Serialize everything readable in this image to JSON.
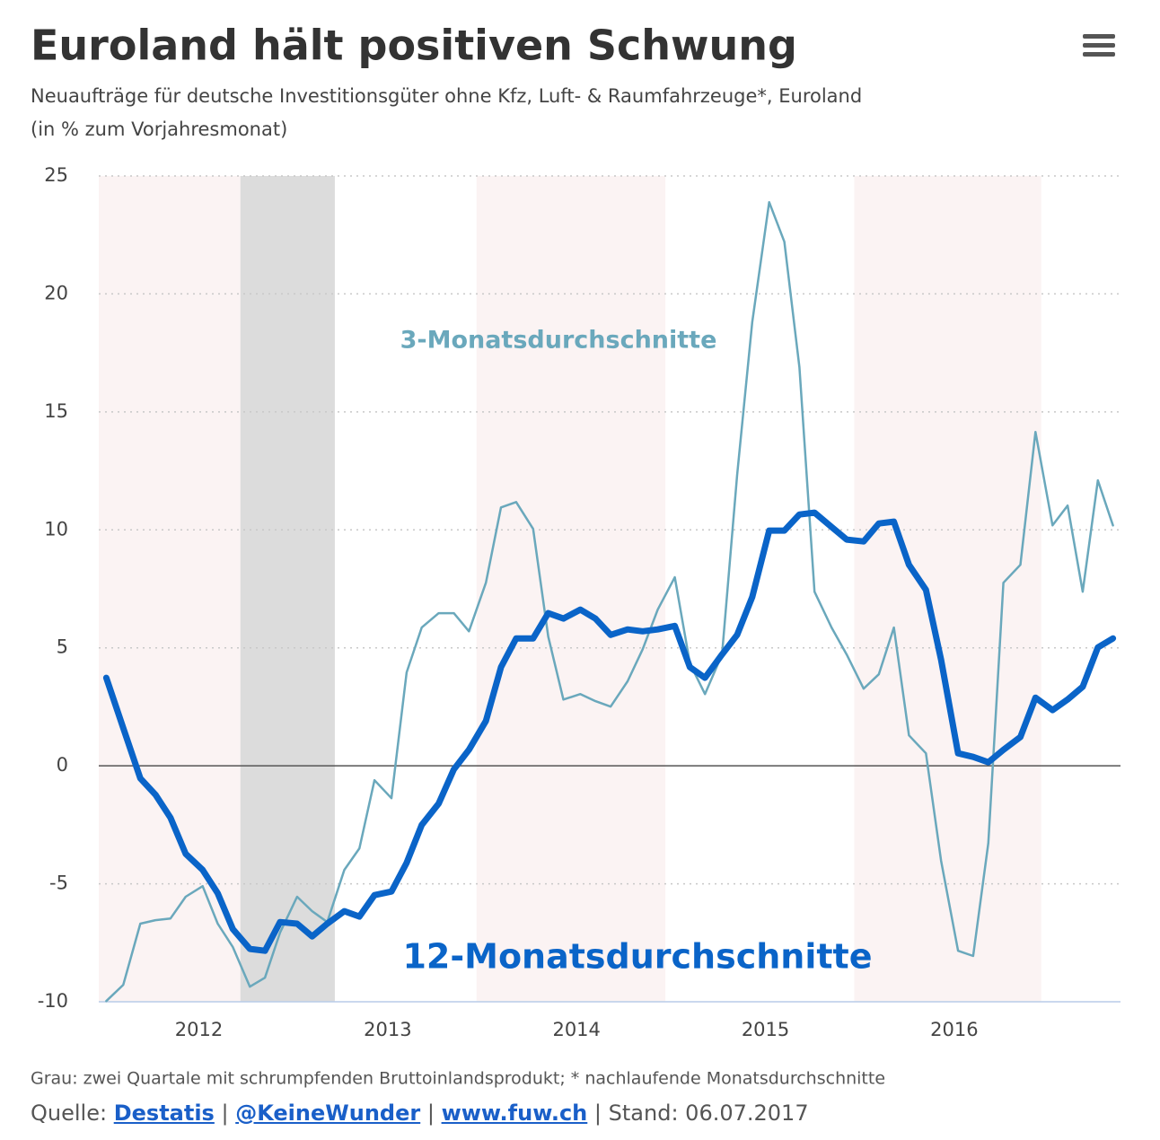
{
  "chart_data": {
    "type": "line",
    "title": "Euroland hält positiven Schwung",
    "subtitle": "Neuaufträge für deutsche Investitionsgüter ohne Kfz, Luft- & Raumfahrzeuge*, Euroland",
    "subtitle2": "(in % zum Vorjahresmonat)",
    "x": [
      2011.51,
      2011.6,
      2011.69,
      2011.77,
      2011.85,
      2011.93,
      2012.02,
      2012.1,
      2012.18,
      2012.27,
      2012.35,
      2012.43,
      2012.52,
      2012.6,
      2012.68,
      2012.77,
      2012.85,
      2012.93,
      2013.02,
      2013.1,
      2013.18,
      2013.27,
      2013.35,
      2013.43,
      2013.52,
      2013.6,
      2013.68,
      2013.77,
      2013.85,
      2013.93,
      2014.02,
      2014.1,
      2014.18,
      2014.27,
      2014.35,
      2014.43,
      2014.52,
      2014.6,
      2014.68,
      2014.77,
      2014.85,
      2014.93,
      2015.02,
      2015.1,
      2015.18,
      2015.26,
      2015.35,
      2015.43,
      2015.52,
      2015.6,
      2015.68,
      2015.76,
      2015.85,
      2015.93,
      2016.02,
      2016.1,
      2016.18,
      2016.26,
      2016.35,
      2016.43,
      2016.52,
      2016.6,
      2016.68,
      2016.76,
      2016.84
    ],
    "series": [
      {
        "name": "3-Monatsdurchschnitte",
        "color": "#6aa8bc",
        "width": 2.5,
        "values": [
          -9.97,
          -9.28,
          -6.69,
          -6.54,
          -6.47,
          -5.55,
          -5.1,
          -6.69,
          -7.68,
          -9.36,
          -8.98,
          -7.07,
          -5.55,
          -6.16,
          -6.62,
          -4.41,
          -3.5,
          -0.61,
          -1.37,
          3.96,
          5.86,
          6.47,
          6.47,
          5.7,
          7.76,
          10.95,
          11.18,
          10.04,
          5.48,
          2.81,
          3.04,
          2.74,
          2.51,
          3.58,
          4.94,
          6.62,
          7.99,
          4.34,
          3.04,
          4.72,
          12.32,
          18.79,
          23.89,
          22.21,
          16.89,
          7.38,
          5.86,
          4.72,
          3.27,
          3.88,
          5.86,
          1.29,
          0.53,
          -4.03,
          -7.84,
          -8.06,
          -3.27,
          7.76,
          8.52,
          14.15,
          10.19,
          11.03,
          7.38,
          12.1,
          10.19
        ]
      },
      {
        "name": "12-Monatsdurchschnitte",
        "color": "#0a64c8",
        "width": 7,
        "values": [
          3.73,
          1.6,
          -0.53,
          -1.22,
          -2.2,
          -3.73,
          -4.41,
          -5.4,
          -6.92,
          -7.76,
          -7.84,
          -6.62,
          -6.69,
          -7.23,
          -6.69,
          -6.16,
          -6.39,
          -5.48,
          -5.33,
          -4.11,
          -2.51,
          -1.6,
          -0.15,
          0.68,
          1.9,
          4.18,
          5.4,
          5.4,
          6.47,
          6.24,
          6.62,
          6.24,
          5.55,
          5.78,
          5.7,
          5.78,
          5.93,
          4.18,
          3.73,
          4.72,
          5.55,
          7.15,
          9.97,
          9.97,
          10.65,
          10.73,
          10.12,
          9.59,
          9.51,
          10.27,
          10.35,
          8.52,
          7.46,
          4.49,
          0.53,
          0.38,
          0.15,
          0.68,
          1.22,
          2.89,
          2.36,
          2.81,
          3.35,
          5.02,
          5.4
        ]
      }
    ],
    "xlim": [
      2011.47,
      2016.88
    ],
    "xticks": [
      2012,
      2013,
      2014,
      2015,
      2016
    ],
    "ylim": [
      -10,
      25
    ],
    "yticks": [
      -10,
      -5,
      0,
      5,
      10,
      15,
      20,
      25
    ],
    "grid": true,
    "bands": [
      {
        "from": 2011.47,
        "to": 2012.47,
        "color": "#fbf3f3"
      },
      {
        "from": 2013.47,
        "to": 2014.47,
        "color": "#fbf3f3"
      },
      {
        "from": 2015.47,
        "to": 2016.46,
        "color": "#fbf3f3"
      },
      {
        "from": 2012.22,
        "to": 2012.72,
        "color": "#dcdcdc"
      }
    ],
    "footnote": "Grau: zwei Quartale mit schrumpfenden Bruttoinlandsprodukt; * nachlaufende Monatsdurchschnitte",
    "source": {
      "prefix": "Quelle:",
      "links": [
        "Destatis",
        "@KeineWunder",
        "www.fuw.ch"
      ],
      "separator": "|",
      "stand": "Stand: 06.07.2017"
    }
  }
}
